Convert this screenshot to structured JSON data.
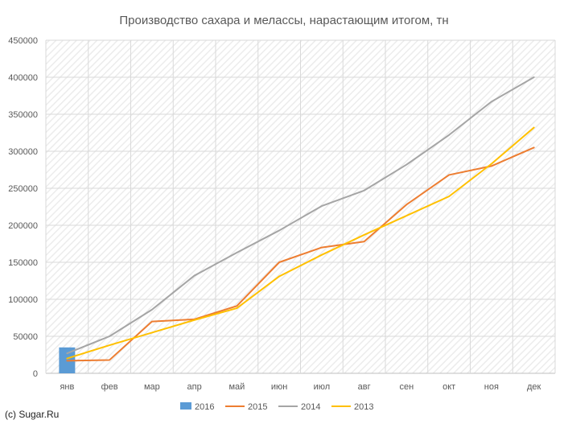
{
  "credit": "(c) Sugar.Ru",
  "chart_data": {
    "type": "line",
    "title": "Производство сахара и мелассы, нарастающим итогом, тн",
    "xlabel": "",
    "ylabel": "",
    "categories": [
      "янв",
      "фев",
      "мар",
      "апр",
      "май",
      "июн",
      "июл",
      "авг",
      "сен",
      "окт",
      "ноя",
      "дек"
    ],
    "ylim": [
      0,
      450000
    ],
    "yticks": [
      0,
      50000,
      100000,
      150000,
      200000,
      250000,
      300000,
      350000,
      400000,
      450000
    ],
    "grid": true,
    "legend_position": "bottom",
    "series": [
      {
        "name": "2016",
        "type": "bar",
        "color": "#5b9bd5",
        "values": [
          35000,
          null,
          null,
          null,
          null,
          null,
          null,
          null,
          null,
          null,
          null,
          null
        ]
      },
      {
        "name": "2015",
        "type": "line",
        "color": "#ed7d31",
        "values": [
          17000,
          18000,
          70000,
          73000,
          91000,
          150000,
          170000,
          178000,
          228000,
          268000,
          280000,
          305000
        ]
      },
      {
        "name": "2014",
        "type": "line",
        "color": "#a5a5a5",
        "values": [
          27000,
          50000,
          86000,
          132000,
          163000,
          193000,
          226000,
          247000,
          282000,
          322000,
          367000,
          400000
        ]
      },
      {
        "name": "2013",
        "type": "line",
        "color": "#ffc000",
        "values": [
          20000,
          38000,
          55000,
          72000,
          88000,
          131000,
          160000,
          187000,
          213000,
          239000,
          283000,
          332000
        ]
      }
    ]
  }
}
